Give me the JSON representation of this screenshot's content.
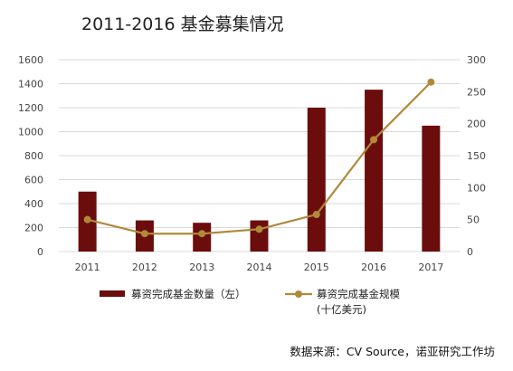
{
  "title": "2011-2016 基金募集情况",
  "source": "数据来源：CV Source，诺亚研究工作坊",
  "chart_data": {
    "type": "bar",
    "categories": [
      "2011",
      "2012",
      "2013",
      "2014",
      "2015",
      "2016",
      "2017"
    ],
    "series": [
      {
        "name": "募资完成基金数量（左）",
        "type": "bar",
        "axis": "left",
        "color": "#6b0d0d",
        "values": [
          500,
          260,
          240,
          260,
          1200,
          1350,
          1050
        ]
      },
      {
        "name": "募资完成基金规模",
        "name_line2": "(十亿美元)",
        "type": "line",
        "axis": "right",
        "color": "#b08a3a",
        "values": [
          50,
          28,
          28,
          35,
          58,
          175,
          265
        ]
      }
    ],
    "ylim_left": [
      0,
      1600
    ],
    "yticks_left": [
      0,
      200,
      400,
      600,
      800,
      1000,
      1200,
      1400,
      1600
    ],
    "ylim_right": [
      0,
      300
    ],
    "yticks_right": [
      0,
      50,
      100,
      150,
      200,
      250,
      300
    ],
    "grid": true,
    "legend_position": "bottom"
  }
}
